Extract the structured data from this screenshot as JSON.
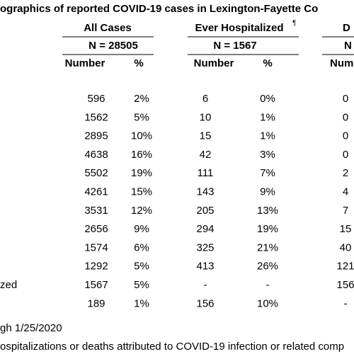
{
  "header": {
    "title": "ographics of reported COVID-19 cases in Lexington-Fayette Co"
  },
  "groups": [
    {
      "title": "All Cases",
      "n": "N = 28505",
      "subheaders": [
        "Number",
        "%"
      ]
    },
    {
      "title": "Ever Hospitalized",
      "marker": "¶",
      "n": "N = 1567",
      "subheaders": [
        "Number",
        "%"
      ]
    },
    {
      "title": "D",
      "n": "N",
      "subheaders": [
        "Numb"
      ]
    }
  ],
  "rows": [
    {
      "cells": [
        "596",
        "2%",
        "6",
        "0%",
        "0"
      ]
    },
    {
      "cells": [
        "1562",
        "5%",
        "10",
        "1%",
        "0"
      ]
    },
    {
      "cells": [
        "2895",
        "10%",
        "15",
        "1%",
        "0"
      ]
    },
    {
      "cells": [
        "4638",
        "16%",
        "42",
        "3%",
        "0"
      ]
    },
    {
      "cells": [
        "5502",
        "19%",
        "111",
        "7%",
        "2"
      ]
    },
    {
      "cells": [
        "4261",
        "15%",
        "143",
        "9%",
        "4"
      ]
    },
    {
      "cells": [
        "3531",
        "12%",
        "205",
        "13%",
        "7"
      ]
    },
    {
      "cells": [
        "2656",
        "9%",
        "294",
        "19%",
        "15"
      ]
    },
    {
      "cells": [
        "1574",
        "6%",
        "325",
        "21%",
        "40"
      ]
    },
    {
      "cells": [
        "1292",
        "5%",
        "413",
        "26%",
        "121"
      ]
    },
    {
      "label": "zed",
      "cells": [
        "1567",
        "5%",
        "-",
        "-",
        "156"
      ]
    },
    {
      "cells": [
        "189",
        "1%",
        "156",
        "10%",
        "-"
      ]
    }
  ],
  "notes": [
    "gh 1/25/2020",
    "ospitalizations or deaths attributed to COVID-19 infection or related comp"
  ]
}
